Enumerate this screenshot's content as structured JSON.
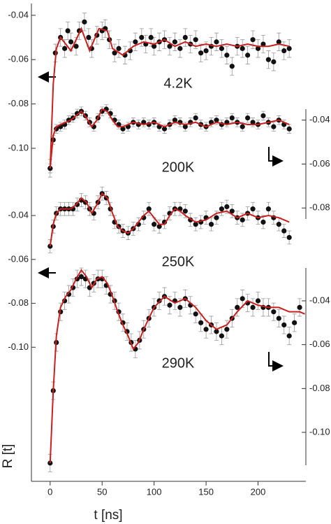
{
  "chart_data": [
    {
      "type": "scatter",
      "label": "4.2K",
      "axis": "left",
      "xlabel": "t [ns]",
      "ylabel": "R [t]",
      "xlim": [
        -18,
        246
      ],
      "xticks": [
        0,
        50,
        100,
        150,
        200
      ],
      "ylim": [
        -0.115,
        -0.035
      ],
      "yticks": [
        -0.04,
        -0.06,
        -0.08,
        {
          "value": -0.1,
          "label": "-0.10"
        }
      ],
      "points": {
        "color": "#111111",
        "error": 0.004,
        "x": [
          0,
          5,
          10,
          14,
          17,
          20,
          25,
          28,
          33,
          37,
          40,
          45,
          50,
          53,
          57,
          62,
          66,
          72,
          77,
          82,
          88,
          92,
          97,
          100,
          105,
          110,
          115,
          120,
          125,
          130,
          135,
          140,
          145,
          150,
          155,
          160,
          165,
          170,
          175,
          180,
          185,
          190,
          195,
          200,
          205,
          210,
          215,
          220,
          225,
          230
        ],
        "values": [
          -0.109,
          -0.057,
          -0.05,
          -0.055,
          -0.047,
          -0.052,
          -0.054,
          -0.047,
          -0.043,
          -0.05,
          -0.055,
          -0.049,
          -0.047,
          -0.046,
          -0.051,
          -0.057,
          -0.055,
          -0.058,
          -0.056,
          -0.052,
          -0.05,
          -0.053,
          -0.05,
          -0.054,
          -0.052,
          -0.051,
          -0.054,
          -0.052,
          -0.055,
          -0.05,
          -0.053,
          -0.051,
          -0.057,
          -0.056,
          -0.054,
          -0.052,
          -0.055,
          -0.058,
          -0.063,
          -0.054,
          -0.055,
          -0.058,
          -0.051,
          -0.055,
          -0.053,
          -0.06,
          -0.061,
          -0.052,
          -0.056,
          -0.055
        ]
      },
      "fit": {
        "color": "#c8201e",
        "x": [
          0,
          3,
          6,
          10,
          20,
          30,
          38,
          47,
          55,
          60,
          70,
          80,
          90,
          100,
          110,
          120,
          130,
          140,
          150,
          160,
          170,
          180,
          190,
          200,
          210,
          220,
          230
        ],
        "values": [
          -0.109,
          -0.071,
          -0.055,
          -0.05,
          -0.056,
          -0.046,
          -0.056,
          -0.046,
          -0.047,
          -0.055,
          -0.058,
          -0.054,
          -0.052,
          -0.053,
          -0.051,
          -0.054,
          -0.052,
          -0.054,
          -0.053,
          -0.054,
          -0.053,
          -0.054,
          -0.053,
          -0.054,
          -0.054,
          -0.053,
          -0.054
        ]
      }
    },
    {
      "type": "scatter",
      "label": "200K",
      "axis": "right",
      "ylim": [
        -0.085,
        -0.035
      ],
      "yticks": [
        -0.04,
        -0.06,
        -0.08
      ],
      "points": {
        "color": "#111111",
        "error": 0.002,
        "x": [
          0,
          3,
          6,
          10,
          14,
          18,
          22,
          26,
          30,
          34,
          38,
          42,
          46,
          50,
          54,
          58,
          62,
          66,
          70,
          75,
          80,
          85,
          90,
          95,
          100,
          105,
          110,
          115,
          120,
          125,
          130,
          135,
          140,
          145,
          150,
          155,
          160,
          165,
          170,
          175,
          180,
          185,
          190,
          195,
          200,
          205,
          210,
          215,
          220,
          225,
          230
        ],
        "values": [
          -0.062,
          -0.049,
          -0.044,
          -0.043,
          -0.042,
          -0.04,
          -0.039,
          -0.037,
          -0.036,
          -0.038,
          -0.041,
          -0.043,
          -0.039,
          -0.036,
          -0.035,
          -0.037,
          -0.04,
          -0.042,
          -0.044,
          -0.043,
          -0.041,
          -0.042,
          -0.041,
          -0.042,
          -0.041,
          -0.043,
          -0.044,
          -0.042,
          -0.04,
          -0.041,
          -0.043,
          -0.041,
          -0.039,
          -0.042,
          -0.043,
          -0.041,
          -0.04,
          -0.042,
          -0.041,
          -0.039,
          -0.041,
          -0.043,
          -0.039,
          -0.041,
          -0.042,
          -0.038,
          -0.041,
          -0.043,
          -0.04,
          -0.042,
          -0.044
        ]
      },
      "fit": {
        "color": "#c8201e",
        "x": [
          0,
          3,
          6,
          10,
          15,
          20,
          25,
          30,
          35,
          40,
          45,
          50,
          55,
          60,
          65,
          70,
          80,
          90,
          100,
          110,
          120,
          130,
          140,
          150,
          160,
          170,
          180,
          190,
          200,
          210,
          220,
          230
        ],
        "values": [
          -0.062,
          -0.047,
          -0.043,
          -0.042,
          -0.041,
          -0.04,
          -0.038,
          -0.036,
          -0.039,
          -0.043,
          -0.04,
          -0.035,
          -0.036,
          -0.04,
          -0.043,
          -0.043,
          -0.041,
          -0.042,
          -0.041,
          -0.043,
          -0.041,
          -0.042,
          -0.041,
          -0.043,
          -0.041,
          -0.042,
          -0.041,
          -0.042,
          -0.042,
          -0.041,
          -0.04,
          -0.042
        ]
      }
    },
    {
      "type": "scatter",
      "label": "250K",
      "axis": "left",
      "ylim": [
        -0.105,
        -0.025
      ],
      "yticks": [
        -0.04,
        -0.06,
        -0.08,
        {
          "value": -0.1,
          "label": "-0.10"
        }
      ],
      "points": {
        "color": "#111111",
        "error": 0.003,
        "x": [
          0,
          3,
          6,
          10,
          14,
          18,
          22,
          26,
          30,
          34,
          38,
          42,
          46,
          50,
          54,
          58,
          62,
          66,
          70,
          75,
          80,
          85,
          90,
          95,
          100,
          105,
          110,
          115,
          120,
          125,
          130,
          135,
          140,
          145,
          150,
          155,
          160,
          165,
          170,
          175,
          180,
          185,
          190,
          195,
          200,
          205,
          210,
          215,
          220,
          225,
          230
        ],
        "values": [
          -0.054,
          -0.045,
          -0.039,
          -0.037,
          -0.037,
          -0.037,
          -0.037,
          -0.035,
          -0.033,
          -0.034,
          -0.037,
          -0.039,
          -0.034,
          -0.03,
          -0.032,
          -0.037,
          -0.043,
          -0.045,
          -0.047,
          -0.048,
          -0.046,
          -0.044,
          -0.041,
          -0.037,
          -0.044,
          -0.045,
          -0.043,
          -0.039,
          -0.037,
          -0.037,
          -0.038,
          -0.042,
          -0.044,
          -0.043,
          -0.041,
          -0.044,
          -0.041,
          -0.037,
          -0.036,
          -0.038,
          -0.041,
          -0.042,
          -0.039,
          -0.037,
          -0.041,
          -0.043,
          -0.037,
          -0.041,
          -0.044,
          -0.047,
          -0.05
        ]
      },
      "fit": {
        "color": "#c8201e",
        "x": [
          0,
          3,
          6,
          10,
          15,
          20,
          25,
          30,
          35,
          40,
          45,
          50,
          55,
          60,
          65,
          70,
          75,
          80,
          85,
          90,
          95,
          100,
          105,
          110,
          115,
          120,
          125,
          130,
          140,
          150,
          160,
          170,
          180,
          190,
          200,
          210,
          220,
          230
        ],
        "values": [
          -0.054,
          -0.044,
          -0.039,
          -0.037,
          -0.037,
          -0.037,
          -0.035,
          -0.032,
          -0.034,
          -0.039,
          -0.035,
          -0.03,
          -0.032,
          -0.039,
          -0.045,
          -0.047,
          -0.048,
          -0.046,
          -0.043,
          -0.04,
          -0.038,
          -0.041,
          -0.044,
          -0.044,
          -0.04,
          -0.037,
          -0.038,
          -0.04,
          -0.043,
          -0.042,
          -0.039,
          -0.038,
          -0.041,
          -0.039,
          -0.041,
          -0.04,
          -0.041,
          -0.043
        ]
      }
    },
    {
      "type": "scatter",
      "label": "290K",
      "axis": "right",
      "ylim": [
        -0.115,
        -0.025
      ],
      "yticks": [
        -0.04,
        -0.06,
        -0.08,
        {
          "value": -0.1,
          "label": "-0.10"
        }
      ],
      "points": {
        "color": "#111111",
        "error": 0.004,
        "x": [
          0,
          3,
          6,
          10,
          14,
          18,
          22,
          26,
          30,
          34,
          38,
          42,
          46,
          50,
          54,
          58,
          62,
          66,
          70,
          74,
          78,
          82,
          86,
          90,
          95,
          100,
          105,
          110,
          115,
          120,
          125,
          130,
          135,
          140,
          145,
          150,
          155,
          160,
          165,
          170,
          175,
          180,
          185,
          190,
          195,
          200,
          205,
          210,
          215,
          220,
          225,
          230,
          235,
          240
        ],
        "values": [
          -0.114,
          -0.081,
          -0.059,
          -0.045,
          -0.04,
          -0.037,
          -0.034,
          -0.03,
          -0.029,
          -0.03,
          -0.034,
          -0.032,
          -0.03,
          -0.03,
          -0.033,
          -0.037,
          -0.04,
          -0.045,
          -0.05,
          -0.054,
          -0.059,
          -0.062,
          -0.058,
          -0.053,
          -0.048,
          -0.043,
          -0.04,
          -0.038,
          -0.042,
          -0.04,
          -0.043,
          -0.039,
          -0.042,
          -0.046,
          -0.05,
          -0.053,
          -0.051,
          -0.054,
          -0.056,
          -0.053,
          -0.048,
          -0.043,
          -0.039,
          -0.041,
          -0.043,
          -0.04,
          -0.043,
          -0.043,
          -0.045,
          -0.048,
          -0.051,
          -0.056,
          -0.05,
          -0.043
        ]
      },
      "fit": {
        "color": "#c8201e",
        "x": [
          0,
          3,
          6,
          10,
          15,
          20,
          25,
          30,
          35,
          40,
          45,
          50,
          55,
          60,
          65,
          70,
          75,
          80,
          85,
          90,
          95,
          100,
          110,
          120,
          130,
          140,
          150,
          160,
          170,
          180,
          190,
          200,
          210,
          220,
          230,
          240,
          245
        ],
        "values": [
          -0.114,
          -0.081,
          -0.056,
          -0.043,
          -0.038,
          -0.035,
          -0.03,
          -0.026,
          -0.029,
          -0.034,
          -0.03,
          -0.029,
          -0.032,
          -0.038,
          -0.045,
          -0.051,
          -0.056,
          -0.062,
          -0.059,
          -0.053,
          -0.048,
          -0.043,
          -0.038,
          -0.041,
          -0.039,
          -0.043,
          -0.049,
          -0.053,
          -0.051,
          -0.045,
          -0.04,
          -0.042,
          -0.043,
          -0.043,
          -0.045,
          -0.045,
          -0.046
        ]
      }
    }
  ]
}
